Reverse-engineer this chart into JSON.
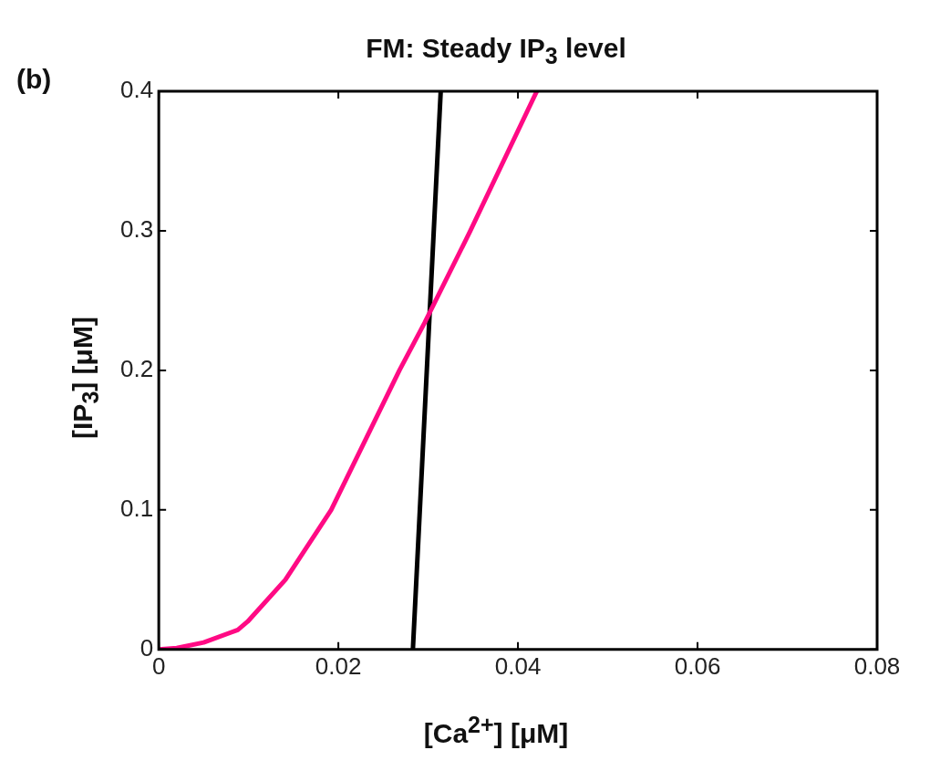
{
  "chart_data": {
    "type": "line",
    "title": "FM: Steady IP$_{3}$ level",
    "xlabel": "[Ca$^{2+}$] [μM]",
    "ylabel": "[IP$_{3}$] [μM]",
    "annotations": [
      "(b)"
    ],
    "xlim": [
      0,
      0.08
    ],
    "ylim": [
      0,
      0.4
    ],
    "xticks": [
      0,
      0.02,
      0.04,
      0.06,
      0.08
    ],
    "yticks": [
      0,
      0.1,
      0.2,
      0.3,
      0.4
    ],
    "grid": false,
    "legend": false,
    "marker": "none",
    "line_style": "solid",
    "series": [
      {
        "color": "#ff0a84",
        "x": [
          0,
          0.002,
          0.005,
          0.0088,
          0.0099,
          0.0141,
          0.0192,
          0.0268,
          0.0296,
          0.0347,
          0.0421
        ],
        "values": [
          0,
          0.001,
          0.005,
          0.014,
          0.02,
          0.05,
          0.1,
          0.2,
          0.234,
          0.3,
          0.4
        ]
      },
      {
        "color": "#000000",
        "x": [
          0.0283,
          0.0314
        ],
        "values": [
          0,
          0.4
        ]
      }
    ]
  }
}
